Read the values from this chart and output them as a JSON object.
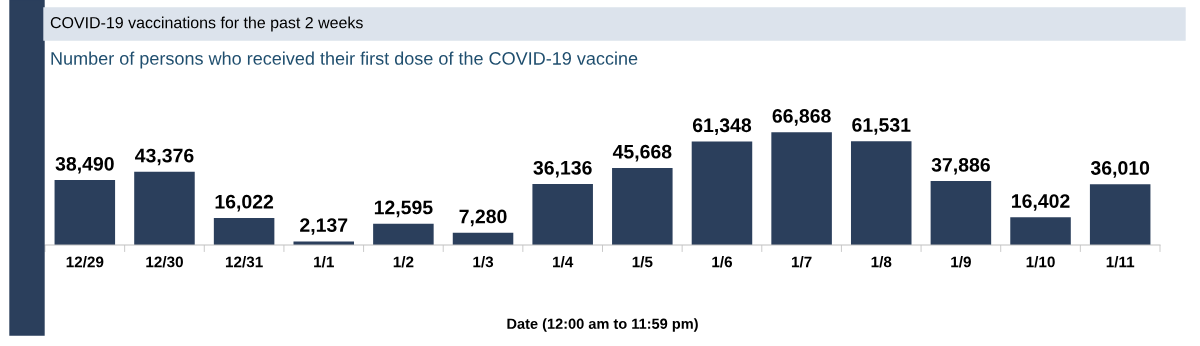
{
  "chart_data": {
    "type": "bar",
    "title": "COVID-19 vaccinations for the past 2 weeks",
    "subtitle": "Number of persons who received their first dose of the COVID-19 vaccine",
    "xlabel": "Date (12:00 am to 11:59 pm)",
    "categories": [
      "12/29",
      "12/30",
      "12/31",
      "1/1",
      "1/2",
      "1/3",
      "1/4",
      "1/5",
      "1/6",
      "1/7",
      "1/8",
      "1/9",
      "1/10",
      "1/11"
    ],
    "values": [
      38490,
      43376,
      16022,
      2137,
      12595,
      7280,
      36136,
      45668,
      61348,
      66868,
      61531,
      37886,
      16402,
      36010
    ],
    "value_labels": [
      "38,490",
      "43,376",
      "16,022",
      "2,137",
      "12,595",
      "7,280",
      "36,136",
      "45,668",
      "61,348",
      "66,868",
      "61,531",
      "37,886",
      "16,402",
      "36,010"
    ],
    "color": "#2b3f5c",
    "grid": false,
    "legend": false,
    "tick_labels": "x"
  }
}
